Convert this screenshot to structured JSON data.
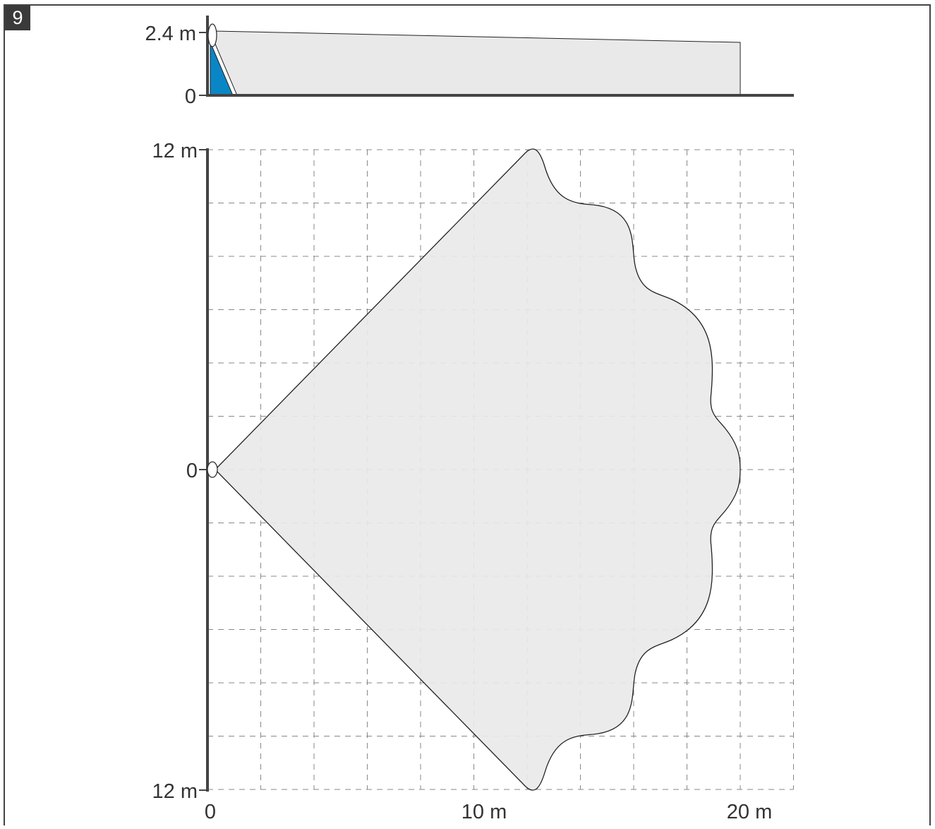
{
  "figure": {
    "number": "9"
  },
  "side_view": {
    "y_ticks": [
      {
        "value": 2.4,
        "label": "2.4 m"
      },
      {
        "value": 0,
        "label": "0"
      }
    ]
  },
  "top_view": {
    "y_ticks": [
      {
        "value": 12,
        "label": "12 m"
      },
      {
        "value": 0,
        "label": "0"
      },
      {
        "value": -12,
        "label": "12 m"
      }
    ],
    "x_ticks": [
      {
        "value": 0,
        "label": "0"
      },
      {
        "value": 10,
        "label": "10 m"
      },
      {
        "value": 20,
        "label": "20 m"
      }
    ]
  },
  "colors": {
    "coverage_fill": "#e9e9e9",
    "blind_zone": "#0a86c6",
    "axis": "#444444",
    "grid": "#888888",
    "outline": "#222222"
  }
}
